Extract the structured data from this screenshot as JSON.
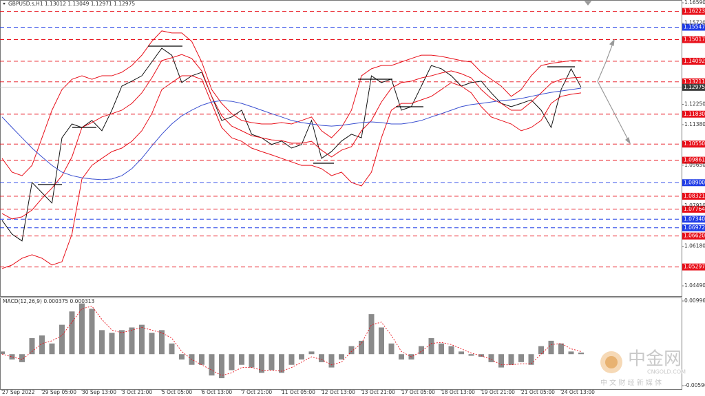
{
  "chart_data": [
    {
      "type": "line",
      "title": "GBPUSD.s,H1 1.13012 1.13049 1.12971 1.12975",
      "categories": [
        "27 Sep 2022",
        null,
        null,
        null,
        "29 Sep 05:00",
        null,
        null,
        null,
        "30 Sep 13:00",
        null,
        null,
        null,
        "3 Oct 21:00",
        null,
        null,
        null,
        "5 Oct 05:00",
        null,
        null,
        null,
        "6 Oct 13:00",
        null,
        null,
        null,
        "7 Oct 21:00",
        null,
        null,
        null,
        "11 Oct 05:00",
        null,
        null,
        null,
        "12 Oct 13:00",
        null,
        null,
        null,
        "13 Oct 21:00",
        null,
        null,
        null,
        "17 Oct 05:00",
        null,
        null,
        null,
        "18 Oct 13:00",
        null,
        null,
        null,
        "19 Oct 21:00",
        null,
        null,
        null,
        "21 Oct 05:00",
        null,
        null,
        null,
        "24 Oct 13:00",
        null,
        null
      ],
      "series": [
        {
          "color": "#111111",
          "values": [
            1.0729,
            1.067,
            1.0641,
            1.0891,
            1.0847,
            1.0803,
            1.1082,
            1.1141,
            1.1126,
            1.1156,
            1.1112,
            1.12,
            1.1303,
            1.1324,
            1.1347,
            1.1406,
            1.1465,
            1.1435,
            1.1318,
            1.1347,
            1.1362,
            1.1259,
            1.1156,
            1.1171,
            1.12,
            1.1097,
            1.1082,
            1.1053,
            1.1068,
            1.1038,
            1.1053,
            1.1156,
            1.0994,
            1.1023,
            1.1068,
            1.1097,
            1.1082,
            1.1347,
            1.1318,
            1.1333,
            1.12,
            1.1215,
            1.1303,
            1.1391,
            1.1377,
            1.1347,
            1.1303,
            1.1318,
            1.1324,
            1.1274,
            1.1229,
            1.1215,
            1.1229,
            1.1244,
            1.12,
            1.1126,
            1.1288,
            1.1377,
            1.1298
          ]
        },
        {
          "color": "#e8101a",
          "values": [
            1.0994,
            1.0935,
            1.092,
            1.0964,
            1.1082,
            1.12,
            1.1288,
            1.1332,
            1.1347,
            1.1332,
            1.1347,
            1.1347,
            1.1362,
            1.1391,
            1.1435,
            1.1494,
            1.1539,
            1.153,
            1.153,
            1.1494,
            1.1406,
            1.1288,
            1.1229,
            1.1185,
            1.1156,
            1.1147,
            1.1141,
            1.1141,
            1.1147,
            1.1141,
            1.1156,
            1.1171,
            1.1112,
            1.1082,
            1.1126,
            1.12,
            1.1347,
            1.1377,
            1.1391,
            1.1391,
            1.1406,
            1.1421,
            1.1435,
            1.1435,
            1.143,
            1.1421,
            1.1412,
            1.1406,
            1.1362,
            1.1332,
            1.1303,
            1.1259,
            1.1288,
            1.1347,
            1.1391,
            1.14,
            1.1406,
            1.1412,
            1.1412
          ]
        },
        {
          "color": "#e8101a",
          "values": [
            1.0758,
            1.0735,
            1.0744,
            1.0773,
            1.0823,
            1.0867,
            1.092,
            1.1,
            1.1126,
            1.1147,
            1.1171,
            1.1185,
            1.12,
            1.1229,
            1.1274,
            1.1338,
            1.1412,
            1.1424,
            1.1438,
            1.1421,
            1.1368,
            1.1259,
            1.1176,
            1.1132,
            1.1112,
            1.1091,
            1.1082,
            1.1073,
            1.107,
            1.1059,
            1.1059,
            1.1067,
            1.1029,
            1.1,
            1.1029,
            1.1044,
            1.1112,
            1.1156,
            1.1235,
            1.1294,
            1.1318,
            1.1324,
            1.1338,
            1.1347,
            1.1359,
            1.1368,
            1.1356,
            1.1338,
            1.1288,
            1.125,
            1.1229,
            1.12,
            1.12,
            1.1235,
            1.1274,
            1.1315,
            1.1332,
            1.1338,
            1.1341
          ]
        },
        {
          "color": "#e8101a",
          "values": [
            1.0523,
            1.0538,
            1.0567,
            1.0582,
            1.0567,
            1.0538,
            1.0552,
            1.067,
            1.0906,
            1.0964,
            1.0994,
            1.1023,
            1.1038,
            1.1067,
            1.1112,
            1.1185,
            1.1288,
            1.1318,
            1.1347,
            1.1347,
            1.1332,
            1.1229,
            1.1126,
            1.1082,
            1.1067,
            1.1038,
            1.1023,
            1.1009,
            1.0994,
            1.0979,
            1.0964,
            1.0964,
            1.095,
            1.092,
            1.0935,
            1.0891,
            1.0876,
            1.0935,
            1.1082,
            1.12,
            1.1229,
            1.1229,
            1.1244,
            1.1259,
            1.1288,
            1.1318,
            1.1303,
            1.1274,
            1.1215,
            1.1171,
            1.1156,
            1.1141,
            1.1112,
            1.1126,
            1.1156,
            1.1229,
            1.1259,
            1.1268,
            1.1274
          ]
        },
        {
          "color": "#3a4fd0",
          "values": [
            1.1171,
            1.1126,
            1.1082,
            1.1038,
            1.1,
            1.0964,
            1.0935,
            1.092,
            1.0911,
            1.0906,
            1.0903,
            1.0906,
            1.092,
            1.095,
            1.0994,
            1.1047,
            1.1097,
            1.1141,
            1.1176,
            1.12,
            1.1221,
            1.1235,
            1.1241,
            1.1238,
            1.1229,
            1.1215,
            1.12,
            1.1185,
            1.1171,
            1.1156,
            1.1147,
            1.1141,
            1.1135,
            1.1132,
            1.1135,
            1.1141,
            1.1147,
            1.115,
            1.1147,
            1.1141,
            1.1141,
            1.1147,
            1.1156,
            1.1171,
            1.1185,
            1.12,
            1.1215,
            1.1224,
            1.1229,
            1.1235,
            1.1241,
            1.1244,
            1.125,
            1.1259,
            1.1268,
            1.1276,
            1.1282,
            1.1288,
            1.1294
          ]
        }
      ],
      "ylim": [
        1.0405,
        1.1671
      ],
      "yticks": [
        {
          "value": 1.1659,
          "label": "1.16590"
        },
        {
          "value": 1.1572,
          "label": "1.15720"
        },
        {
          "value": 1.1225,
          "label": "1.12250"
        },
        {
          "value": 1.1138,
          "label": "1.11380"
        },
        {
          "value": 1.0965,
          "label": "1.09650"
        },
        {
          "value": 1.0791,
          "label": "1.07910"
        },
        {
          "value": 1.0618,
          "label": "1.06180"
        },
        {
          "value": 1.0449,
          "label": "1.04490"
        }
      ],
      "levels": [
        {
          "value": 1.16223,
          "color": "#e8101a"
        },
        {
          "value": 1.15547,
          "color": "#1f3ce6"
        },
        {
          "value": 1.15017,
          "color": "#e8101a"
        },
        {
          "value": 1.14092,
          "color": "#e8101a"
        },
        {
          "value": 1.13211,
          "color": "#e8101a"
        },
        {
          "value": 1.1183,
          "label": "1.11830",
          "color": "#e8101a"
        },
        {
          "value": 1.1055,
          "label": "1.10550",
          "color": "#e8101a"
        },
        {
          "value": 1.09861,
          "color": "#e8101a"
        },
        {
          "value": 1.089,
          "label": "1.08900",
          "color": "#1f3ce6"
        },
        {
          "value": 1.08321,
          "color": "#e8101a"
        },
        {
          "value": 1.07764,
          "color": "#e8101a"
        },
        {
          "value": 1.0734,
          "label": "1.07340",
          "color": "#1f3ce6"
        },
        {
          "value": 1.06972,
          "color": "#1f3ce6"
        },
        {
          "value": 1.0662,
          "label": "1.06620",
          "color": "#e8101a"
        },
        {
          "value": 1.05297,
          "color": "#e8101a"
        }
      ],
      "current": {
        "value": 1.12975,
        "color": "#3c3c3c"
      }
    },
    {
      "type": "bar",
      "title": "MACD(12,26,9) 0.000375 0.000313",
      "color": "#8a8a8a",
      "values": [
        0.0005,
        -0.001,
        -0.0015,
        0.003,
        0.0035,
        0.002,
        0.0055,
        0.008,
        0.0095,
        0.0085,
        0.0045,
        0.004,
        0.0045,
        0.005,
        0.0055,
        0.004,
        0.0045,
        0.002,
        -0.001,
        -0.002,
        -0.002,
        -0.004,
        -0.0045,
        -0.003,
        -0.002,
        -0.0025,
        -0.0035,
        -0.003,
        -0.0035,
        -0.002,
        -0.001,
        0.0005,
        -0.0015,
        -0.0025,
        -0.001,
        0.0015,
        0.0025,
        0.0075,
        0.005,
        0.002,
        -0.001,
        -0.001,
        0.0015,
        0.003,
        0.002,
        0.0015,
        0.0005,
        -0.0003,
        -0.0005,
        -0.0015,
        -0.0025,
        -0.002,
        -0.0015,
        -0.002,
        0.0015,
        0.0025,
        0.002,
        0.0005,
        0.0003
      ],
      "signal": {
        "color": "#e8101a",
        "values": [
          0,
          -0.0005,
          -0.001,
          0.0005,
          0.002,
          0.0025,
          0.0035,
          0.006,
          0.0085,
          0.009,
          0.0065,
          0.0045,
          0.004,
          0.0045,
          0.005,
          0.0045,
          0.004,
          0.003,
          0.0005,
          -0.001,
          -0.002,
          -0.003,
          -0.004,
          -0.0035,
          -0.0025,
          -0.0025,
          -0.003,
          -0.003,
          -0.0032,
          -0.0025,
          -0.0015,
          -0.0005,
          -0.001,
          -0.002,
          -0.0015,
          0.0005,
          0.002,
          0.0055,
          0.006,
          0.0035,
          0.0005,
          -0.0005,
          0.0005,
          0.002,
          0.0022,
          0.0018,
          0.001,
          0.0002,
          -0.0003,
          -0.001,
          -0.002,
          -0.002,
          -0.0018,
          -0.0018,
          0,
          0.0018,
          0.002,
          0.001,
          0.0005
        ]
      },
      "ylim": [
        -0.00655,
        0.01061
      ],
      "yticks": [
        0.009962,
        -0.005902
      ]
    }
  ],
  "watermark": {
    "name": "中金网",
    "site": "CNGOLD.COM",
    "slogan": "中 文 财 经 新 媒 体"
  }
}
